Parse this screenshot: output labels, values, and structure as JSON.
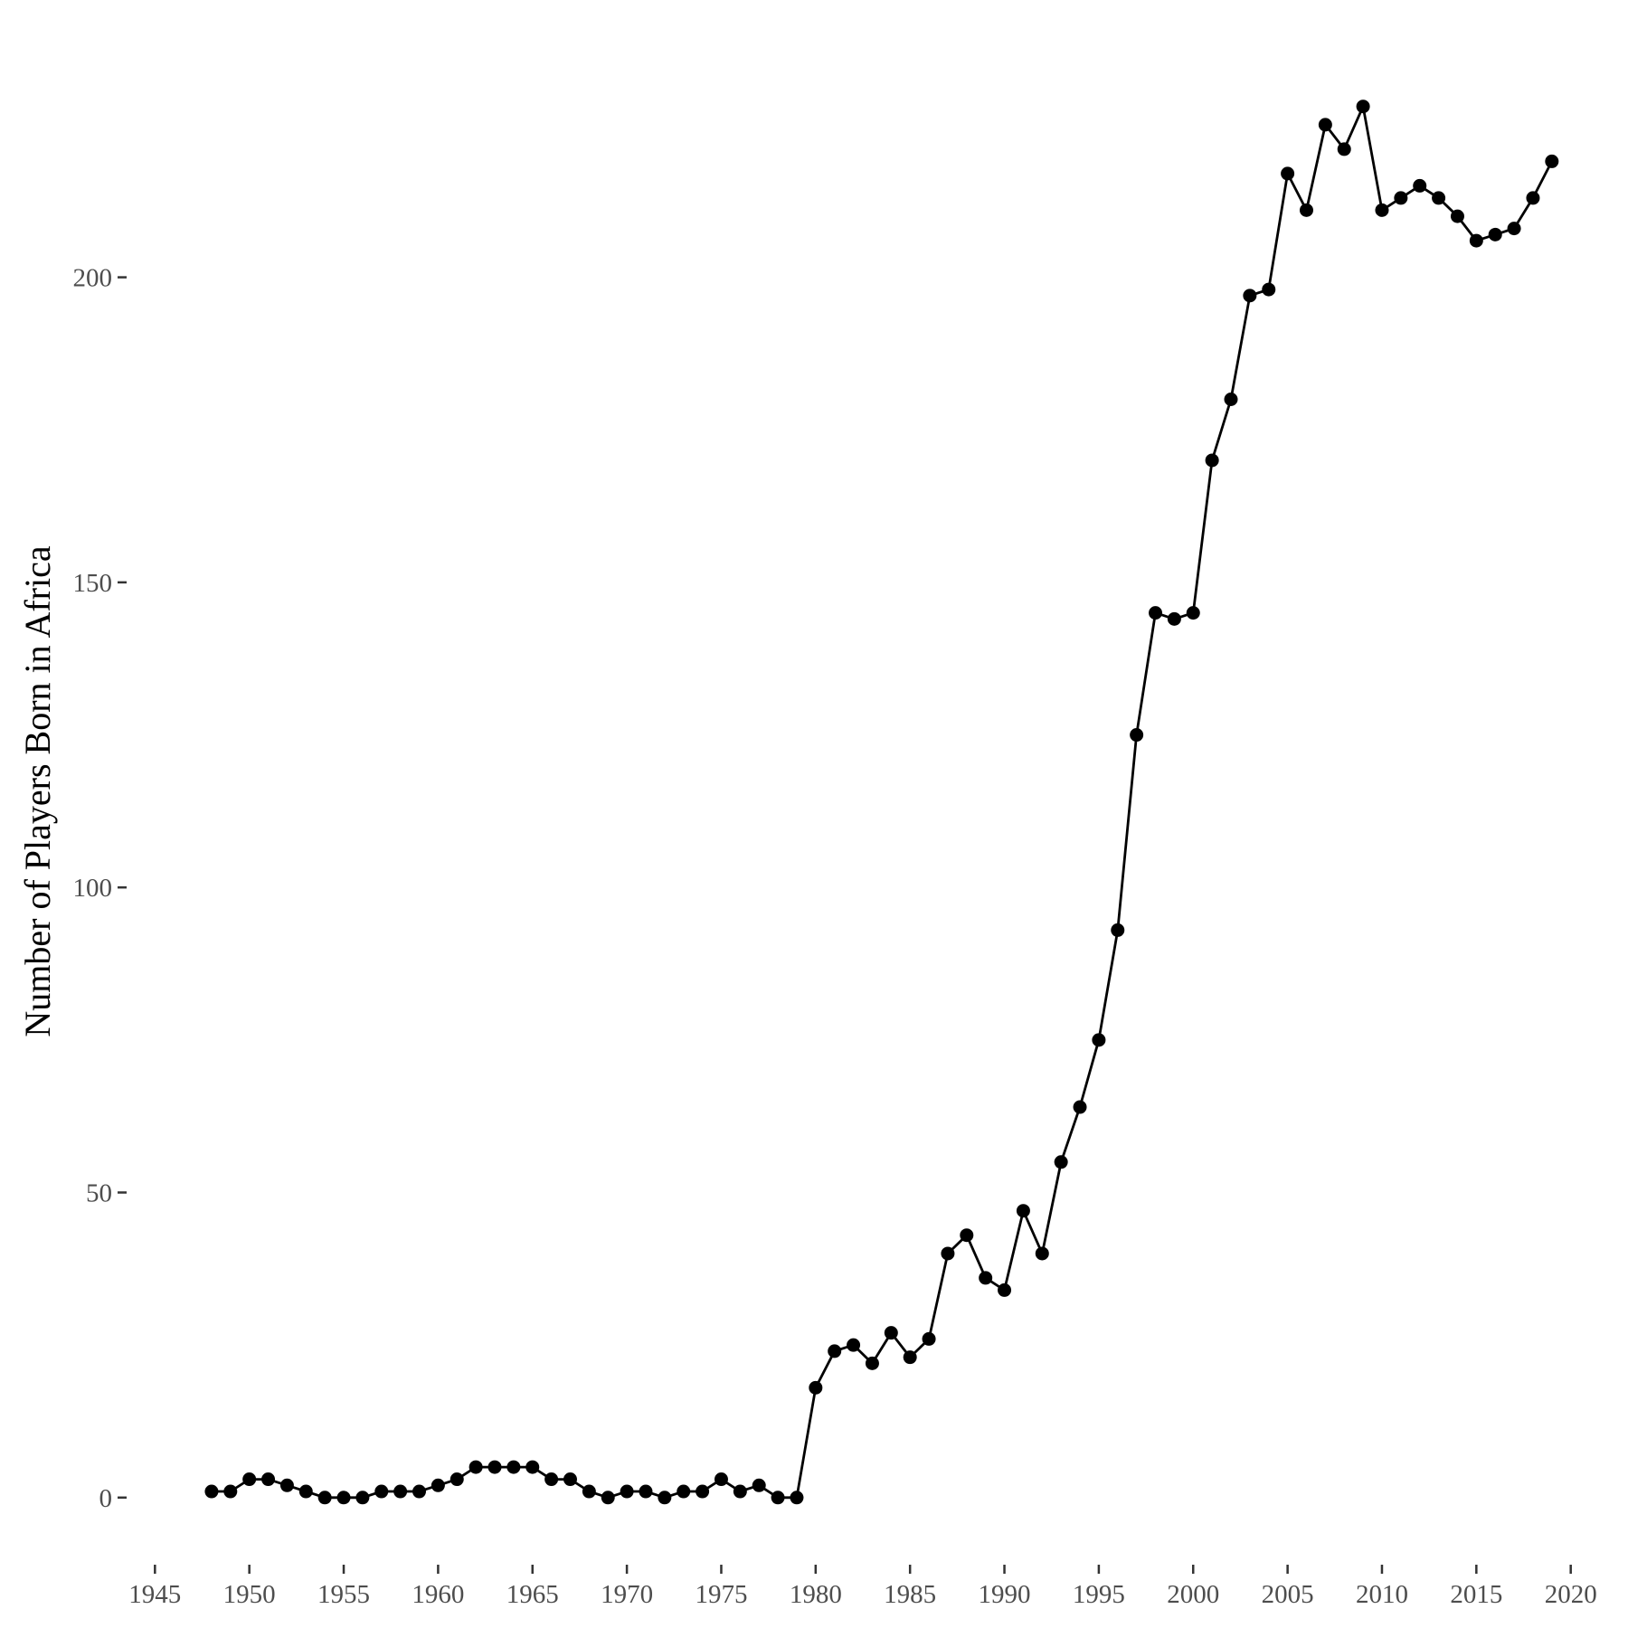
{
  "chart_data": {
    "type": "line",
    "title": "",
    "xlabel": "",
    "ylabel": "Number of Players Born in Africa",
    "xlim": [
      1943.5,
      2021.5
    ],
    "ylim": [
      -11,
      241
    ],
    "x_ticks": [
      1945,
      1950,
      1955,
      1960,
      1965,
      1970,
      1975,
      1980,
      1985,
      1990,
      1995,
      2000,
      2005,
      2010,
      2015,
      2020
    ],
    "y_ticks": [
      0,
      50,
      100,
      150,
      200
    ],
    "x_tick_labels": [
      "1945",
      "1950",
      "1955",
      "1960",
      "1965",
      "1970",
      "1975",
      "1980",
      "1985",
      "1990",
      "1995",
      "2000",
      "2005",
      "2010",
      "2015",
      "2020"
    ],
    "y_tick_labels": [
      "0",
      "50",
      "100",
      "150",
      "200"
    ],
    "grid": false,
    "legend": "none",
    "color": "#000000",
    "x": [
      1948,
      1949,
      1950,
      1951,
      1952,
      1953,
      1954,
      1955,
      1956,
      1957,
      1958,
      1959,
      1960,
      1961,
      1962,
      1963,
      1964,
      1965,
      1966,
      1967,
      1968,
      1969,
      1970,
      1971,
      1972,
      1973,
      1974,
      1975,
      1976,
      1977,
      1978,
      1979,
      1980,
      1981,
      1982,
      1983,
      1984,
      1985,
      1986,
      1987,
      1988,
      1989,
      1990,
      1991,
      1992,
      1993,
      1994,
      1995,
      1996,
      1997,
      1998,
      1999,
      2000,
      2001,
      2002,
      2003,
      2004,
      2005,
      2006,
      2007,
      2008,
      2009,
      2010,
      2011,
      2012,
      2013,
      2014,
      2015,
      2016,
      2017,
      2018,
      2019
    ],
    "y": [
      1,
      1,
      3,
      3,
      2,
      1,
      0,
      0,
      0,
      1,
      1,
      1,
      2,
      3,
      5,
      5,
      5,
      5,
      3,
      3,
      1,
      0,
      1,
      1,
      0,
      1,
      1,
      3,
      1,
      2,
      0,
      0,
      18,
      24,
      25,
      22,
      27,
      23,
      26,
      40,
      43,
      36,
      34,
      47,
      40,
      55,
      64,
      75,
      93,
      125,
      145,
      144,
      145,
      170,
      180,
      197,
      198,
      217,
      211,
      225,
      221,
      228,
      211,
      213,
      215,
      213,
      210,
      206,
      207,
      208,
      213,
      219
    ]
  }
}
